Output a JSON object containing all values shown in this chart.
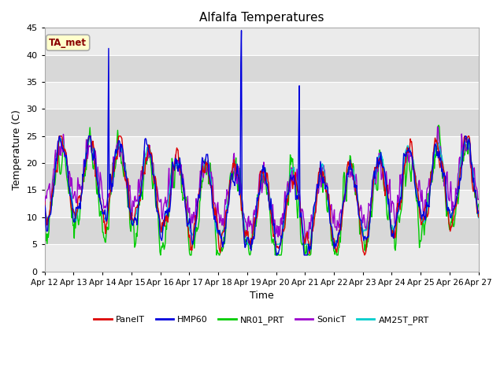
{
  "title": "Alfalfa Temperatures",
  "xlabel": "Time",
  "ylabel": "Temperature (C)",
  "ylim": [
    0,
    45
  ],
  "yticks": [
    0,
    5,
    10,
    15,
    20,
    25,
    30,
    35,
    40,
    45
  ],
  "x_labels": [
    "Apr 12",
    "Apr 13",
    "Apr 14",
    "Apr 15",
    "Apr 16",
    "Apr 17",
    "Apr 18",
    "Apr 19",
    "Apr 20",
    "Apr 21",
    "Apr 22",
    "Apr 23",
    "Apr 24",
    "Apr 25",
    "Apr 26",
    "Apr 27"
  ],
  "colors": {
    "PanelT": "#dd0000",
    "HMP60": "#0000dd",
    "NR01_PRT": "#00cc00",
    "SonicT": "#9900cc",
    "AM25T_PRT": "#00cccc"
  },
  "legend_label": "TA_met",
  "bg_light": "#ebebeb",
  "bg_dark": "#d8d8d8",
  "figsize": [
    6.4,
    4.8
  ],
  "dpi": 100
}
